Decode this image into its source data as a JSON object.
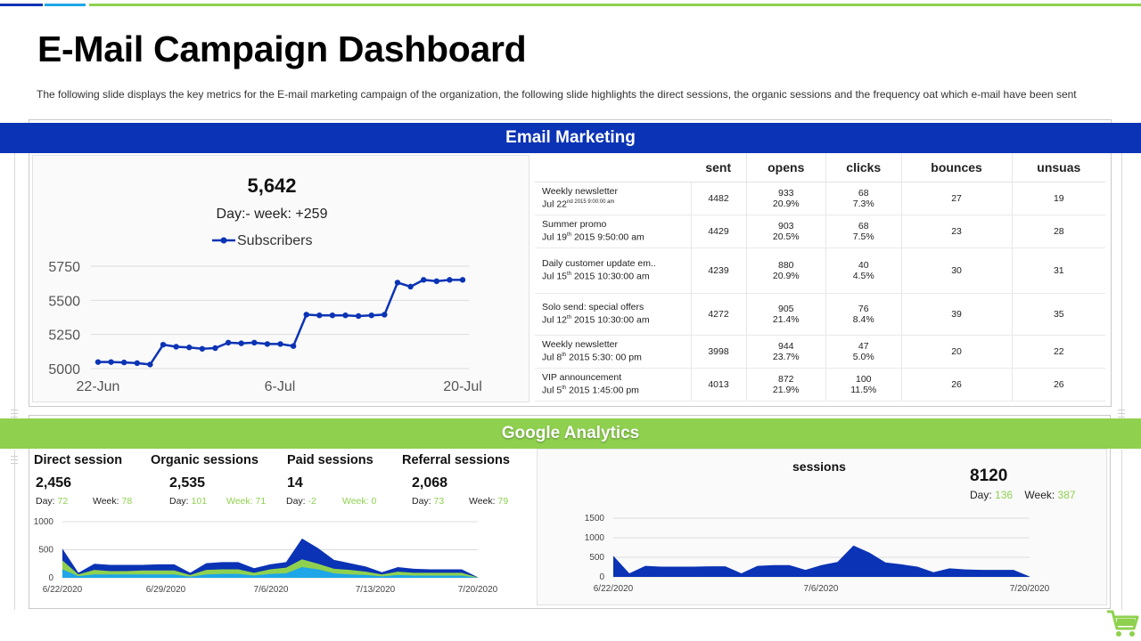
{
  "page": {
    "title": "E-Mail Campaign Dashboard",
    "subtitle": "The following  slide displays the key metrics for  the E-mail marketing campaign of the organization,  the following  slide highlights the direct sessions, the organic sessions and the frequency  oat which e-mail have  been  sent"
  },
  "colors": {
    "blue": "#0b33b5",
    "green": "#8fd14f",
    "light_blue": "#1ea6e8"
  },
  "sections": {
    "email": "Email Marketing",
    "analytics": "Google Analytics"
  },
  "subscribers": {
    "value": "5,642",
    "delta": "Day:- week: +259"
  },
  "chart_data": [
    {
      "type": "line",
      "series": [
        {
          "name": "Subscribers",
          "values": [
            5048,
            5048,
            5045,
            5040,
            5030,
            5175,
            5160,
            5155,
            5145,
            5150,
            5190,
            5185,
            5190,
            5180,
            5180,
            5165,
            5395,
            5390,
            5390,
            5390,
            5385,
            5390,
            5395,
            5630,
            5600,
            5650,
            5640,
            5650,
            5650
          ]
        }
      ],
      "x_labels": [
        "22-Jun",
        "6-Jul",
        "20-Jul"
      ],
      "y_ticks": [
        5000,
        5250,
        5500,
        5750
      ],
      "ylim": [
        5000,
        5750
      ]
    },
    {
      "type": "area",
      "x_labels": [
        "6/22/2020",
        "6/29/2020",
        "7/6/2020",
        "7/13/2020",
        "7/20/2020"
      ],
      "y_ticks": [
        0,
        500,
        1000
      ],
      "ylim": [
        0,
        1000
      ],
      "series": [
        {
          "values": [
            520,
            90,
            250,
            230,
            230,
            230,
            240,
            240,
            90,
            260,
            280,
            280,
            170,
            240,
            280,
            700,
            530,
            320,
            260,
            200,
            100,
            190,
            160,
            150,
            150,
            150,
            10
          ]
        },
        {
          "values": [
            310,
            60,
            140,
            120,
            120,
            130,
            130,
            130,
            50,
            140,
            150,
            150,
            90,
            150,
            180,
            330,
            250,
            160,
            140,
            110,
            60,
            110,
            90,
            90,
            90,
            90,
            5
          ]
        },
        {
          "values": [
            150,
            30,
            60,
            60,
            60,
            60,
            60,
            60,
            20,
            60,
            70,
            70,
            40,
            70,
            80,
            190,
            150,
            80,
            60,
            50,
            25,
            50,
            40,
            40,
            40,
            40,
            0
          ]
        }
      ]
    },
    {
      "type": "area",
      "title": "sessions",
      "x_labels": [
        "6/22/2020",
        "7/6/2020",
        "7/20/2020"
      ],
      "y_ticks": [
        0,
        500,
        1000,
        1500
      ],
      "ylim": [
        0,
        1500
      ],
      "series": [
        {
          "values": [
            540,
            90,
            280,
            260,
            260,
            260,
            270,
            270,
            90,
            280,
            300,
            300,
            180,
            300,
            380,
            800,
            620,
            370,
            320,
            260,
            120,
            220,
            190,
            180,
            180,
            180,
            10
          ]
        }
      ]
    }
  ],
  "campaigns": {
    "headers": [
      "sent",
      "opens",
      "clicks",
      "bounces",
      "unsuas"
    ],
    "rows": [
      {
        "name": "Weekly newsletter",
        "date_pre": "Jul 22",
        "date_sup": "nd 2015 9:00:00 am",
        "date_post": "",
        "sent": "4482",
        "opens": "933",
        "opens_pct": "20.9%",
        "clicks": "68",
        "clicks_pct": "7.3%",
        "bounces": "27",
        "unsubs": "19"
      },
      {
        "name": "Summer promo",
        "date_pre": "Jul 19",
        "date_sup": "th",
        "date_post": " 2015 9:50:00 am",
        "sent": "4429",
        "opens": "903",
        "opens_pct": "20.5%",
        "clicks": "68",
        "clicks_pct": "7.5%",
        "bounces": "23",
        "unsubs": "28"
      },
      {
        "name": "Daily customer update em..",
        "date_pre": "Jul 15",
        "date_sup": "th",
        "date_post": " 2015 10:30:00 am",
        "sent": "4239",
        "opens": "880",
        "opens_pct": "20.9%",
        "clicks": "40",
        "clicks_pct": "4.5%",
        "bounces": "30",
        "unsubs": "31"
      },
      {
        "name": "Solo send: special offers",
        "date_pre": "Jul 12",
        "date_sup": "th",
        "date_post": " 2015 10:30:00 am",
        "sent": "4272",
        "opens": "905",
        "opens_pct": "21.4%",
        "clicks": "76",
        "clicks_pct": "8.4%",
        "bounces": "39",
        "unsubs": "35"
      },
      {
        "name": "Weekly newsletter",
        "date_pre": "Jul 8",
        "date_sup": "th",
        "date_post": " 2015 5:30: 00 pm",
        "sent": "3998",
        "opens": "944",
        "opens_pct": "23.7%",
        "clicks": "47",
        "clicks_pct": "5.0%",
        "bounces": "20",
        "unsubs": "22"
      },
      {
        "name": "VIP announcement",
        "date_pre": "Jul 5",
        "date_sup": "th",
        "date_post": " 2015 1:45:00 pm",
        "sent": "4013",
        "opens": "872",
        "opens_pct": "21.9%",
        "clicks": "100",
        "clicks_pct": "11.5%",
        "bounces": "26",
        "unsubs": "26"
      }
    ]
  },
  "analytics": {
    "metrics": [
      {
        "label": "Direct session",
        "value": "2,456",
        "day_label": "Day:",
        "day": "72",
        "week_label": "Week:",
        "week": "78"
      },
      {
        "label": "Organic sessions",
        "value": "2,535",
        "day_label": "Day:",
        "day": "101",
        "week_label": "Week:",
        "week": "71"
      },
      {
        "label": "Paid sessions",
        "value": "14",
        "day_label": "Day:",
        "day": "-2",
        "week_label": "Week:",
        "week": "0"
      },
      {
        "label": "Referral sessions",
        "value": "2,068",
        "day_label": "Day:",
        "day": "73",
        "week_label": "Week:",
        "week": "79"
      }
    ],
    "sessions_total": {
      "value": "8120",
      "day_label": "Day:",
      "day": "136",
      "week_label": "Week:",
      "week": "387"
    }
  },
  "icons": {
    "cart": "shopping-cart-icon"
  }
}
